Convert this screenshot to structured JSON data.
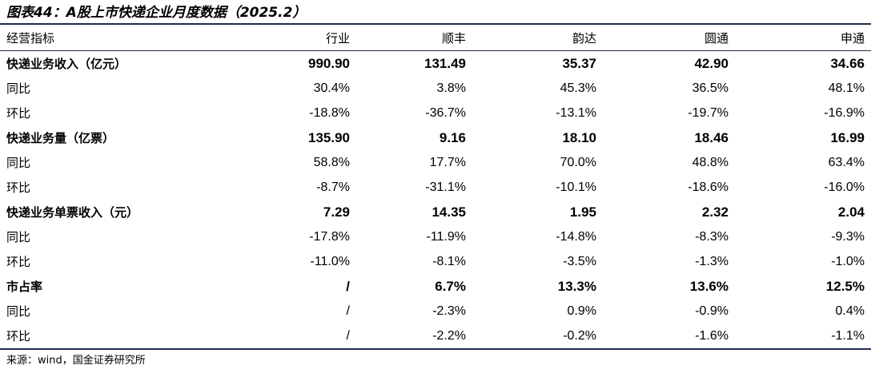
{
  "title": "图表44：A股上市快递企业月度数据（2025.2）",
  "table": {
    "headers": [
      "经营指标",
      "行业",
      "顺丰",
      "韵达",
      "圆通",
      "申通"
    ],
    "rows": [
      {
        "label": "快递业务收入（亿元）",
        "main": true,
        "values": [
          "990.90",
          "131.49",
          "35.37",
          "42.90",
          "34.66"
        ]
      },
      {
        "label": "同比",
        "main": false,
        "values": [
          "30.4%",
          "3.8%",
          "45.3%",
          "36.5%",
          "48.1%"
        ]
      },
      {
        "label": "环比",
        "main": false,
        "values": [
          "-18.8%",
          "-36.7%",
          "-13.1%",
          "-19.7%",
          "-16.9%"
        ]
      },
      {
        "label": "快递业务量（亿票）",
        "main": true,
        "values": [
          "135.90",
          "9.16",
          "18.10",
          "18.46",
          "16.99"
        ]
      },
      {
        "label": "同比",
        "main": false,
        "values": [
          "58.8%",
          "17.7%",
          "70.0%",
          "48.8%",
          "63.4%"
        ]
      },
      {
        "label": "环比",
        "main": false,
        "values": [
          "-8.7%",
          "-31.1%",
          "-10.1%",
          "-18.6%",
          "-16.0%"
        ]
      },
      {
        "label": "快递业务单票收入（元）",
        "main": true,
        "values": [
          "7.29",
          "14.35",
          "1.95",
          "2.32",
          "2.04"
        ]
      },
      {
        "label": "同比",
        "main": false,
        "values": [
          "-17.8%",
          "-11.9%",
          "-14.8%",
          "-8.3%",
          "-9.3%"
        ]
      },
      {
        "label": "环比",
        "main": false,
        "values": [
          "-11.0%",
          "-8.1%",
          "-3.5%",
          "-1.3%",
          "-1.0%"
        ]
      },
      {
        "label": "市占率",
        "main": true,
        "values": [
          "/",
          "6.7%",
          "13.3%",
          "13.6%",
          "12.5%"
        ]
      },
      {
        "label": "同比",
        "main": false,
        "values": [
          "/",
          "-2.3%",
          "0.9%",
          "-0.9%",
          "0.4%"
        ]
      },
      {
        "label": "环比",
        "main": false,
        "values": [
          "/",
          "-2.2%",
          "-0.2%",
          "-1.6%",
          "-1.1%"
        ]
      }
    ]
  },
  "source": "来源：wind，国金证券研究所"
}
